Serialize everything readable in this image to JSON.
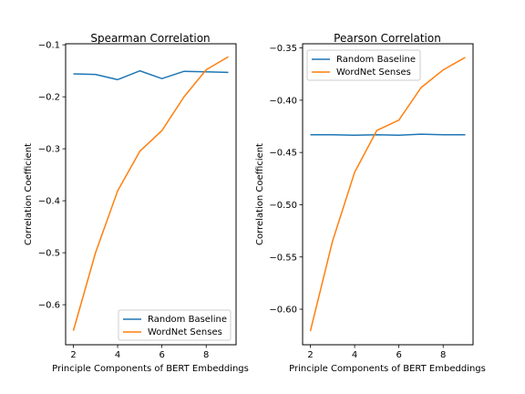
{
  "chart_data": [
    {
      "type": "line",
      "title": "Spearman Correlation",
      "xlabel": "Principle Components of BERT Embeddings",
      "ylabel": "Correlation Coefficient",
      "x": [
        2,
        3,
        4,
        5,
        6,
        7,
        8,
        9
      ],
      "xlim": [
        1.65,
        9.35
      ],
      "ylim": [
        -0.677,
        -0.098
      ],
      "xticks": [
        2,
        4,
        6,
        8
      ],
      "yticks": [
        -0.6,
        -0.5,
        -0.4,
        -0.3,
        -0.2,
        -0.1
      ],
      "ytick_labels": [
        "−0.6",
        "−0.5",
        "−0.4",
        "−0.3",
        "−0.2",
        "−0.1"
      ],
      "grid": false,
      "legend": "lower-right",
      "series": [
        {
          "name": "Random Baseline",
          "color": "#1f77b4",
          "values": [
            -0.156,
            -0.157,
            -0.167,
            -0.15,
            -0.165,
            -0.151,
            -0.152,
            -0.153
          ]
        },
        {
          "name": "WordNet Senses",
          "color": "#ff7f0e",
          "values": [
            -0.65,
            -0.5,
            -0.381,
            -0.305,
            -0.265,
            -0.2,
            -0.148,
            -0.123
          ]
        }
      ]
    },
    {
      "type": "line",
      "title": "Pearson Correlation",
      "xlabel": "Principle Components of BERT Embeddings",
      "ylabel": "Correlation Coefficient",
      "x": [
        2,
        3,
        4,
        5,
        6,
        7,
        8,
        9
      ],
      "xlim": [
        1.65,
        9.35
      ],
      "ylim": [
        -0.634,
        -0.346
      ],
      "xticks": [
        2,
        4,
        6,
        8
      ],
      "yticks": [
        -0.6,
        -0.55,
        -0.5,
        -0.45,
        -0.4,
        -0.35
      ],
      "ytick_labels": [
        "−0.60",
        "−0.55",
        "−0.50",
        "−0.45",
        "−0.40",
        "−0.35"
      ],
      "grid": false,
      "legend": "upper-left",
      "series": [
        {
          "name": "Random Baseline",
          "color": "#1f77b4",
          "values": [
            -0.433,
            -0.433,
            -0.4335,
            -0.433,
            -0.4335,
            -0.4325,
            -0.433,
            -0.433
          ]
        },
        {
          "name": "WordNet Senses",
          "color": "#ff7f0e",
          "values": [
            -0.621,
            -0.535,
            -0.469,
            -0.429,
            -0.419,
            -0.388,
            -0.371,
            -0.359
          ]
        }
      ]
    }
  ]
}
